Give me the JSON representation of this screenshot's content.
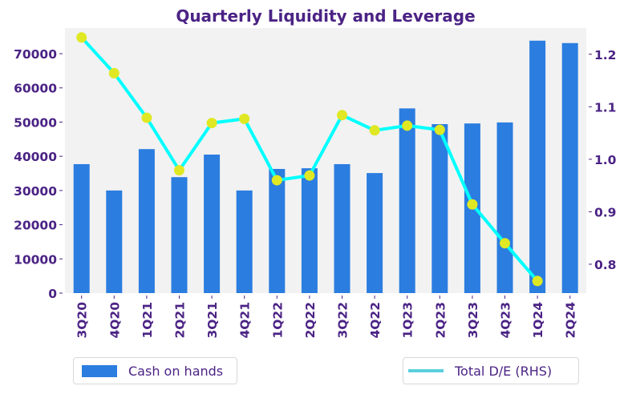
{
  "chart_data": {
    "type": "bar",
    "title": "Quarterly Liquidity and Leverage",
    "xlabel": "",
    "ylabel": "",
    "y2label": "",
    "categories": [
      "3Q20",
      "4Q20",
      "1Q21",
      "2Q21",
      "3Q21",
      "4Q21",
      "1Q22",
      "2Q22",
      "3Q22",
      "4Q22",
      "1Q23",
      "2Q23",
      "3Q23",
      "4Q23",
      "1Q24",
      "2Q24"
    ],
    "series": [
      {
        "name": "Cash on hands",
        "type": "bar",
        "axis": "left",
        "color": "#2b7de0",
        "values": [
          37700,
          30000,
          42100,
          33900,
          40500,
          30000,
          36300,
          36500,
          37700,
          35100,
          54000,
          49400,
          49600,
          49900,
          73800,
          73100
        ]
      },
      {
        "name": "Total D/E (RHS)",
        "type": "line",
        "axis": "right",
        "color": "#00ffff",
        "marker_color": "#dfe823",
        "legend_color": "#5bcfdd",
        "values": [
          1.232,
          1.164,
          1.079,
          0.979,
          1.069,
          1.077,
          0.96,
          0.969,
          1.084,
          1.055,
          1.064,
          1.056,
          0.914,
          0.84,
          0.768,
          null
        ]
      }
    ],
    "ylim": [
      0,
      77500
    ],
    "y2lim": [
      0.745,
      1.25
    ],
    "yticks": [
      0,
      10000,
      20000,
      30000,
      40000,
      50000,
      60000,
      70000
    ],
    "ytick_labels": [
      "0",
      "10000",
      "20000",
      "30000",
      "40000",
      "50000",
      "60000",
      "70000"
    ],
    "y2ticks": [
      0.8,
      0.9,
      1.0,
      1.1,
      1.2
    ],
    "y2tick_labels": [
      "0.8",
      "0.9",
      "1.0",
      "1.1",
      "1.2"
    ],
    "grid": false,
    "plot_background": "#f2f2f2",
    "text_color": "#4b2385",
    "legend": [
      {
        "label": "Cash on hands",
        "placement": "bottom-left"
      },
      {
        "label": "Total D/E (RHS)",
        "placement": "bottom-right"
      }
    ]
  }
}
